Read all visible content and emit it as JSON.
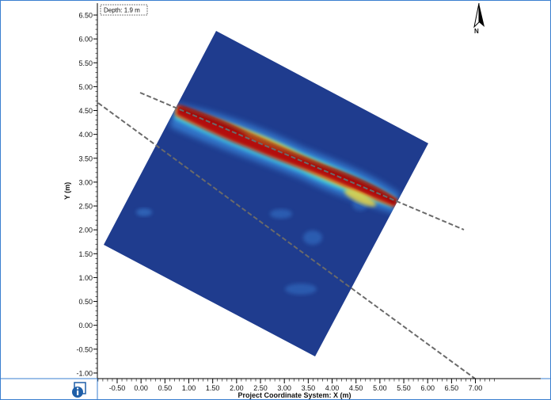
{
  "depth_label": "Depth: 1.9 m",
  "north_label": "N",
  "y_axis_title": "Y (m)",
  "x_axis_title": "Project Coordinate System: X (m)",
  "y_ticks": [
    "6.50",
    "6.00",
    "5.50",
    "5.00",
    "4.50",
    "4.00",
    "3.50",
    "3.00",
    "2.50",
    "2.00",
    "1.50",
    "1.00",
    "0.50",
    "0.00",
    "-0.50",
    "-1.00"
  ],
  "x_ticks": [
    "-0.50",
    "0.00",
    "0.50",
    "1.00",
    "1.50",
    "2.00",
    "2.50",
    "3.00",
    "3.50",
    "4.00",
    "4.50",
    "5.00",
    "5.50",
    "6.00",
    "6.50",
    "7.00"
  ],
  "info_icon": "info-icon",
  "colors": {
    "frame_border": "#3a7fd0",
    "background_blue": "#1f3c8e",
    "hot_red": "#b30f0f",
    "dashed_line": "#6a6a6a"
  }
}
